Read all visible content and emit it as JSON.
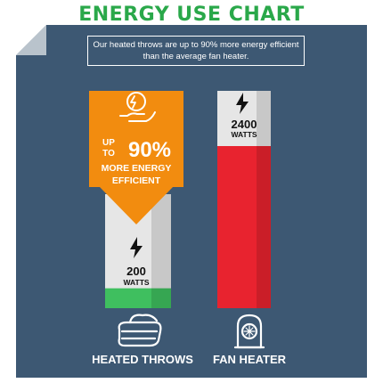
{
  "title": "ENERGY USE CHART",
  "subtitle": "Our heated throws are up to 90% more energy efficient than the average fan heater.",
  "callout": {
    "line1_prefix_top": "UP",
    "line1_prefix_bottom": "TO",
    "line1_value": "90%",
    "line2": "MORE ENERGY",
    "line3": "EFFICIENT"
  },
  "icons": [
    "energy-saving-hand-icon",
    "lightning-bolt-icon",
    "blanket-icon",
    "fan-heater-icon"
  ],
  "colors": {
    "title": "#2aa84a",
    "panel": "#3d5873",
    "callout": "#f28c0f",
    "throw_fill": "#3fbf5f",
    "heater_fill": "#e8232f",
    "bar_empty": "#e6e6e6"
  },
  "chart_data": {
    "type": "bar",
    "categories": [
      "HEATED THROWS",
      "FAN HEATER"
    ],
    "values": [
      200,
      2400
    ],
    "value_labels": [
      "200",
      "2400"
    ],
    "unit": "WATTS",
    "ylim": [
      0,
      2400
    ]
  }
}
